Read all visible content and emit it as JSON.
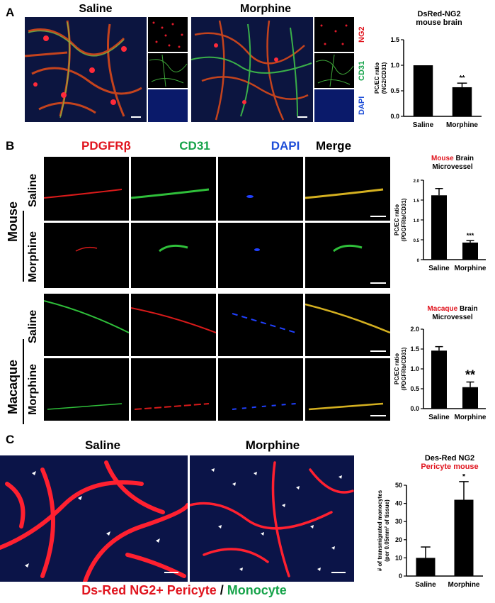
{
  "panelA": {
    "letter": "A",
    "header_saline": "Saline",
    "header_morphine": "Morphine",
    "stains": {
      "ng2": "NG2",
      "cd31": "CD31",
      "dapi": "DAPI"
    },
    "chart_title": [
      "DsRed-NG2",
      "mouse brain"
    ]
  },
  "panelB": {
    "letter": "B",
    "columns": [
      "PDGFRβ",
      "CD31",
      "DAPI",
      "Merge"
    ],
    "species_mouse": "Mouse",
    "species_macaque": "Macaque",
    "row_saline": "Saline",
    "row_morphine": "Morphine",
    "chart1_title_colored": "Mouse",
    "chart1_title_rest": "Brain",
    "chart1_title_line2": "Microvessel",
    "chart2_title_colored": "Macaque",
    "chart2_title_rest": "Brain",
    "chart2_title_line2": "Microvessel"
  },
  "panelC": {
    "letter": "C",
    "header_saline": "Saline",
    "header_morphine": "Morphine",
    "caption_red": "Ds-Red NG2+ Pericyte",
    "caption_sep": " / ",
    "caption_green": "Monocyte",
    "chart_title_line1": "Des-Red NG2",
    "chart_title_line2": "Pericyte mouse"
  },
  "colors": {
    "red": "#e0141e",
    "green": "#16a34a",
    "blue": "#1f4fd8",
    "bar": "#000000"
  },
  "chart_data": [
    {
      "type": "bar",
      "categories": [
        "Saline",
        "Morphine"
      ],
      "values": [
        1.0,
        0.57
      ],
      "errors": [
        0,
        0.08
      ],
      "significance": [
        "",
        "**"
      ],
      "ylabel": "PC/EC ratio\n(NG2/CD31)",
      "ylim": [
        0.0,
        1.5
      ],
      "yticks": [
        "0.0",
        "0.5",
        "1.0",
        "1.5"
      ]
    },
    {
      "type": "bar",
      "categories": [
        "Saline",
        "Morphine"
      ],
      "values": [
        1.62,
        0.43
      ],
      "errors": [
        0.17,
        0.05
      ],
      "significance": [
        "",
        "***"
      ],
      "ylabel": "PC/EC ratio\n(PDGFRb/CD31)",
      "ylim": [
        0,
        2.0
      ],
      "yticks": [
        "0",
        "0.5",
        "1.0",
        "1.5",
        "2.0"
      ]
    },
    {
      "type": "bar",
      "categories": [
        "Saline",
        "Morphine"
      ],
      "values": [
        1.46,
        0.54
      ],
      "errors": [
        0.1,
        0.13
      ],
      "significance": [
        "",
        "**"
      ],
      "ylabel": "PC/EC ratio\n(PDGFRb/CD31)",
      "ylim": [
        0.0,
        2.0
      ],
      "yticks": [
        "0.0",
        "0.5",
        "1.0",
        "1.5",
        "2.0"
      ]
    },
    {
      "type": "bar",
      "categories": [
        "Saline",
        "Morphine"
      ],
      "values": [
        10,
        42
      ],
      "errors": [
        6,
        10
      ],
      "significance": [
        "",
        "*"
      ],
      "ylabel": "# of transmigrated monocytes\n(per 0.05mm² of tissue)",
      "ylim": [
        0,
        50
      ],
      "yticks": [
        "0",
        "10",
        "20",
        "30",
        "40",
        "50"
      ]
    }
  ]
}
